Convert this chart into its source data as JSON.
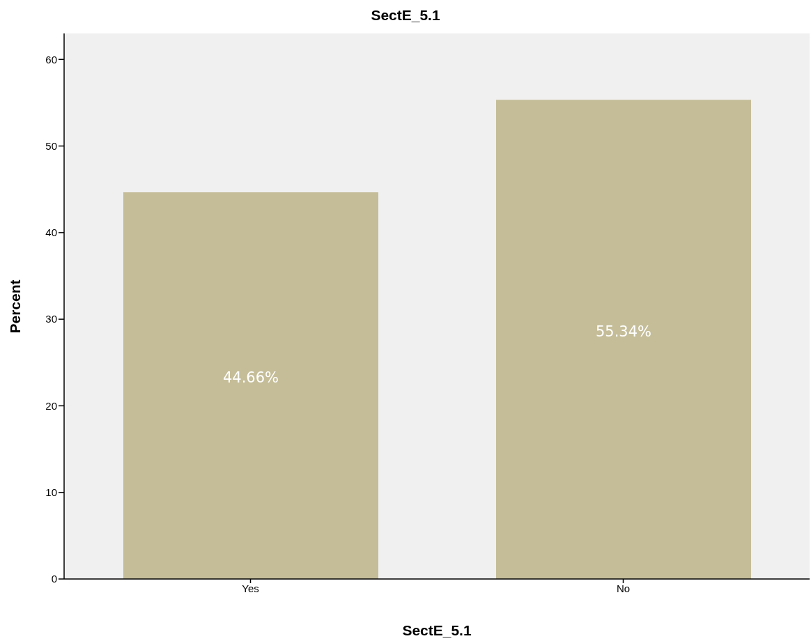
{
  "chart_data": {
    "type": "bar",
    "title": "SectE_5.1",
    "xlabel": "SectE_5.1",
    "ylabel": "Percent",
    "categories": [
      "Yes",
      "No"
    ],
    "values": [
      44.66,
      55.34
    ],
    "value_labels": [
      "44.66%",
      "55.34%"
    ],
    "color": "#c5bd98",
    "ylim": [
      0,
      63
    ],
    "yticks": [
      0,
      10,
      20,
      30,
      40,
      50,
      60
    ],
    "grid": false
  }
}
